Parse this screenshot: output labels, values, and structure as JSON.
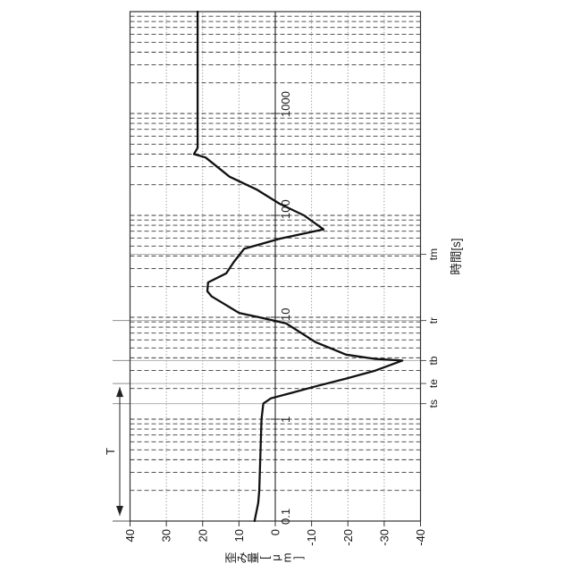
{
  "figure": {
    "background": "#ffffff",
    "orientation": "rotated-90deg-ccw"
  },
  "colors": {
    "curve": "#111111",
    "border": "#333333",
    "zero_axis": "#222222",
    "dashed_grid": "#3a3a3a",
    "dotted_grid": "#8a8a8a",
    "marker_line": "#b0b0b0",
    "extension_line": "#8f8f8f",
    "arrow": "#222222"
  },
  "chart_data": {
    "type": "line",
    "title": "",
    "xlabel": "時間[s]",
    "ylabel": "歪み量[μm]",
    "x_scale": "log",
    "x_range": [
      0.1,
      10000
    ],
    "x_tick_values": [
      0.1,
      1,
      10,
      100,
      1000
    ],
    "x_tick_labels": [
      "0.1",
      "1",
      "10",
      "100",
      "1000"
    ],
    "y_range": [
      -40,
      40
    ],
    "y_tick_values": [
      40,
      30,
      20,
      10,
      0,
      -10,
      -20,
      -30,
      -40
    ],
    "y_tick_labels": [
      "40",
      "30",
      "20",
      "10",
      "0",
      "-10",
      "-20",
      "-30",
      "-40"
    ],
    "grid": {
      "x_minor_log_dashed": true,
      "y_dotted_every": 10,
      "zero_axis_solid": true
    },
    "legend": "none",
    "time_markers": [
      {
        "label": "ts",
        "t": 1.42
      },
      {
        "label": "te",
        "t": 2.24
      },
      {
        "label": "tb",
        "t": 3.76
      },
      {
        "label": "tr",
        "t": 9.3
      },
      {
        "label": "tm",
        "t": 41.5
      }
    ],
    "annotation": {
      "label": "T",
      "from_t": 0.1,
      "to_t": 2.24,
      "note": "double-headed arrow above plot between measurement start line and te line"
    },
    "series": [
      {
        "name": "歪み量",
        "color": "#111111",
        "points": [
          [
            0.1,
            5.7
          ],
          [
            0.15,
            4.7
          ],
          [
            0.2,
            4.4
          ],
          [
            1.0,
            3.8
          ],
          [
            1.42,
            3.3
          ],
          [
            1.6,
            1.2
          ],
          [
            1.8,
            -4.2
          ],
          [
            2.1,
            -11.1
          ],
          [
            2.5,
            -19.5
          ],
          [
            3.0,
            -27.6
          ],
          [
            3.76,
            -35.0
          ],
          [
            3.9,
            -27.6
          ],
          [
            4.3,
            -19.5
          ],
          [
            5.7,
            -11.1
          ],
          [
            8.7,
            -3.0
          ],
          [
            10,
            4.4
          ],
          [
            11,
            9.9
          ],
          [
            14,
            14.8
          ],
          [
            16,
            17.5
          ],
          [
            18,
            18.7
          ],
          [
            22,
            18.5
          ],
          [
            27,
            13.5
          ],
          [
            35,
            11.4
          ],
          [
            47,
            8.6
          ],
          [
            59,
            -1.2
          ],
          [
            73,
            -13.3
          ],
          [
            100,
            -7.9
          ],
          [
            130,
            -1.2
          ],
          [
            180,
            5.2
          ],
          [
            240,
            12.6
          ],
          [
            370,
            19.2
          ],
          [
            400,
            22.4
          ],
          [
            460,
            21.4
          ],
          [
            10000,
            21.4
          ]
        ]
      }
    ]
  }
}
